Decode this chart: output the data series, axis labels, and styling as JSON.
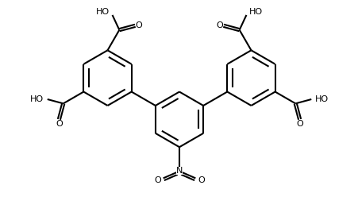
{
  "bg_color": "#ffffff",
  "bond_color": "#000000",
  "text_color": "#000000",
  "line_width": 1.5,
  "font_size": 8.0,
  "fig_width": 4.52,
  "fig_height": 2.77,
  "dpi": 100,
  "xlim": [
    0,
    10
  ],
  "ylim": [
    0,
    7
  ]
}
